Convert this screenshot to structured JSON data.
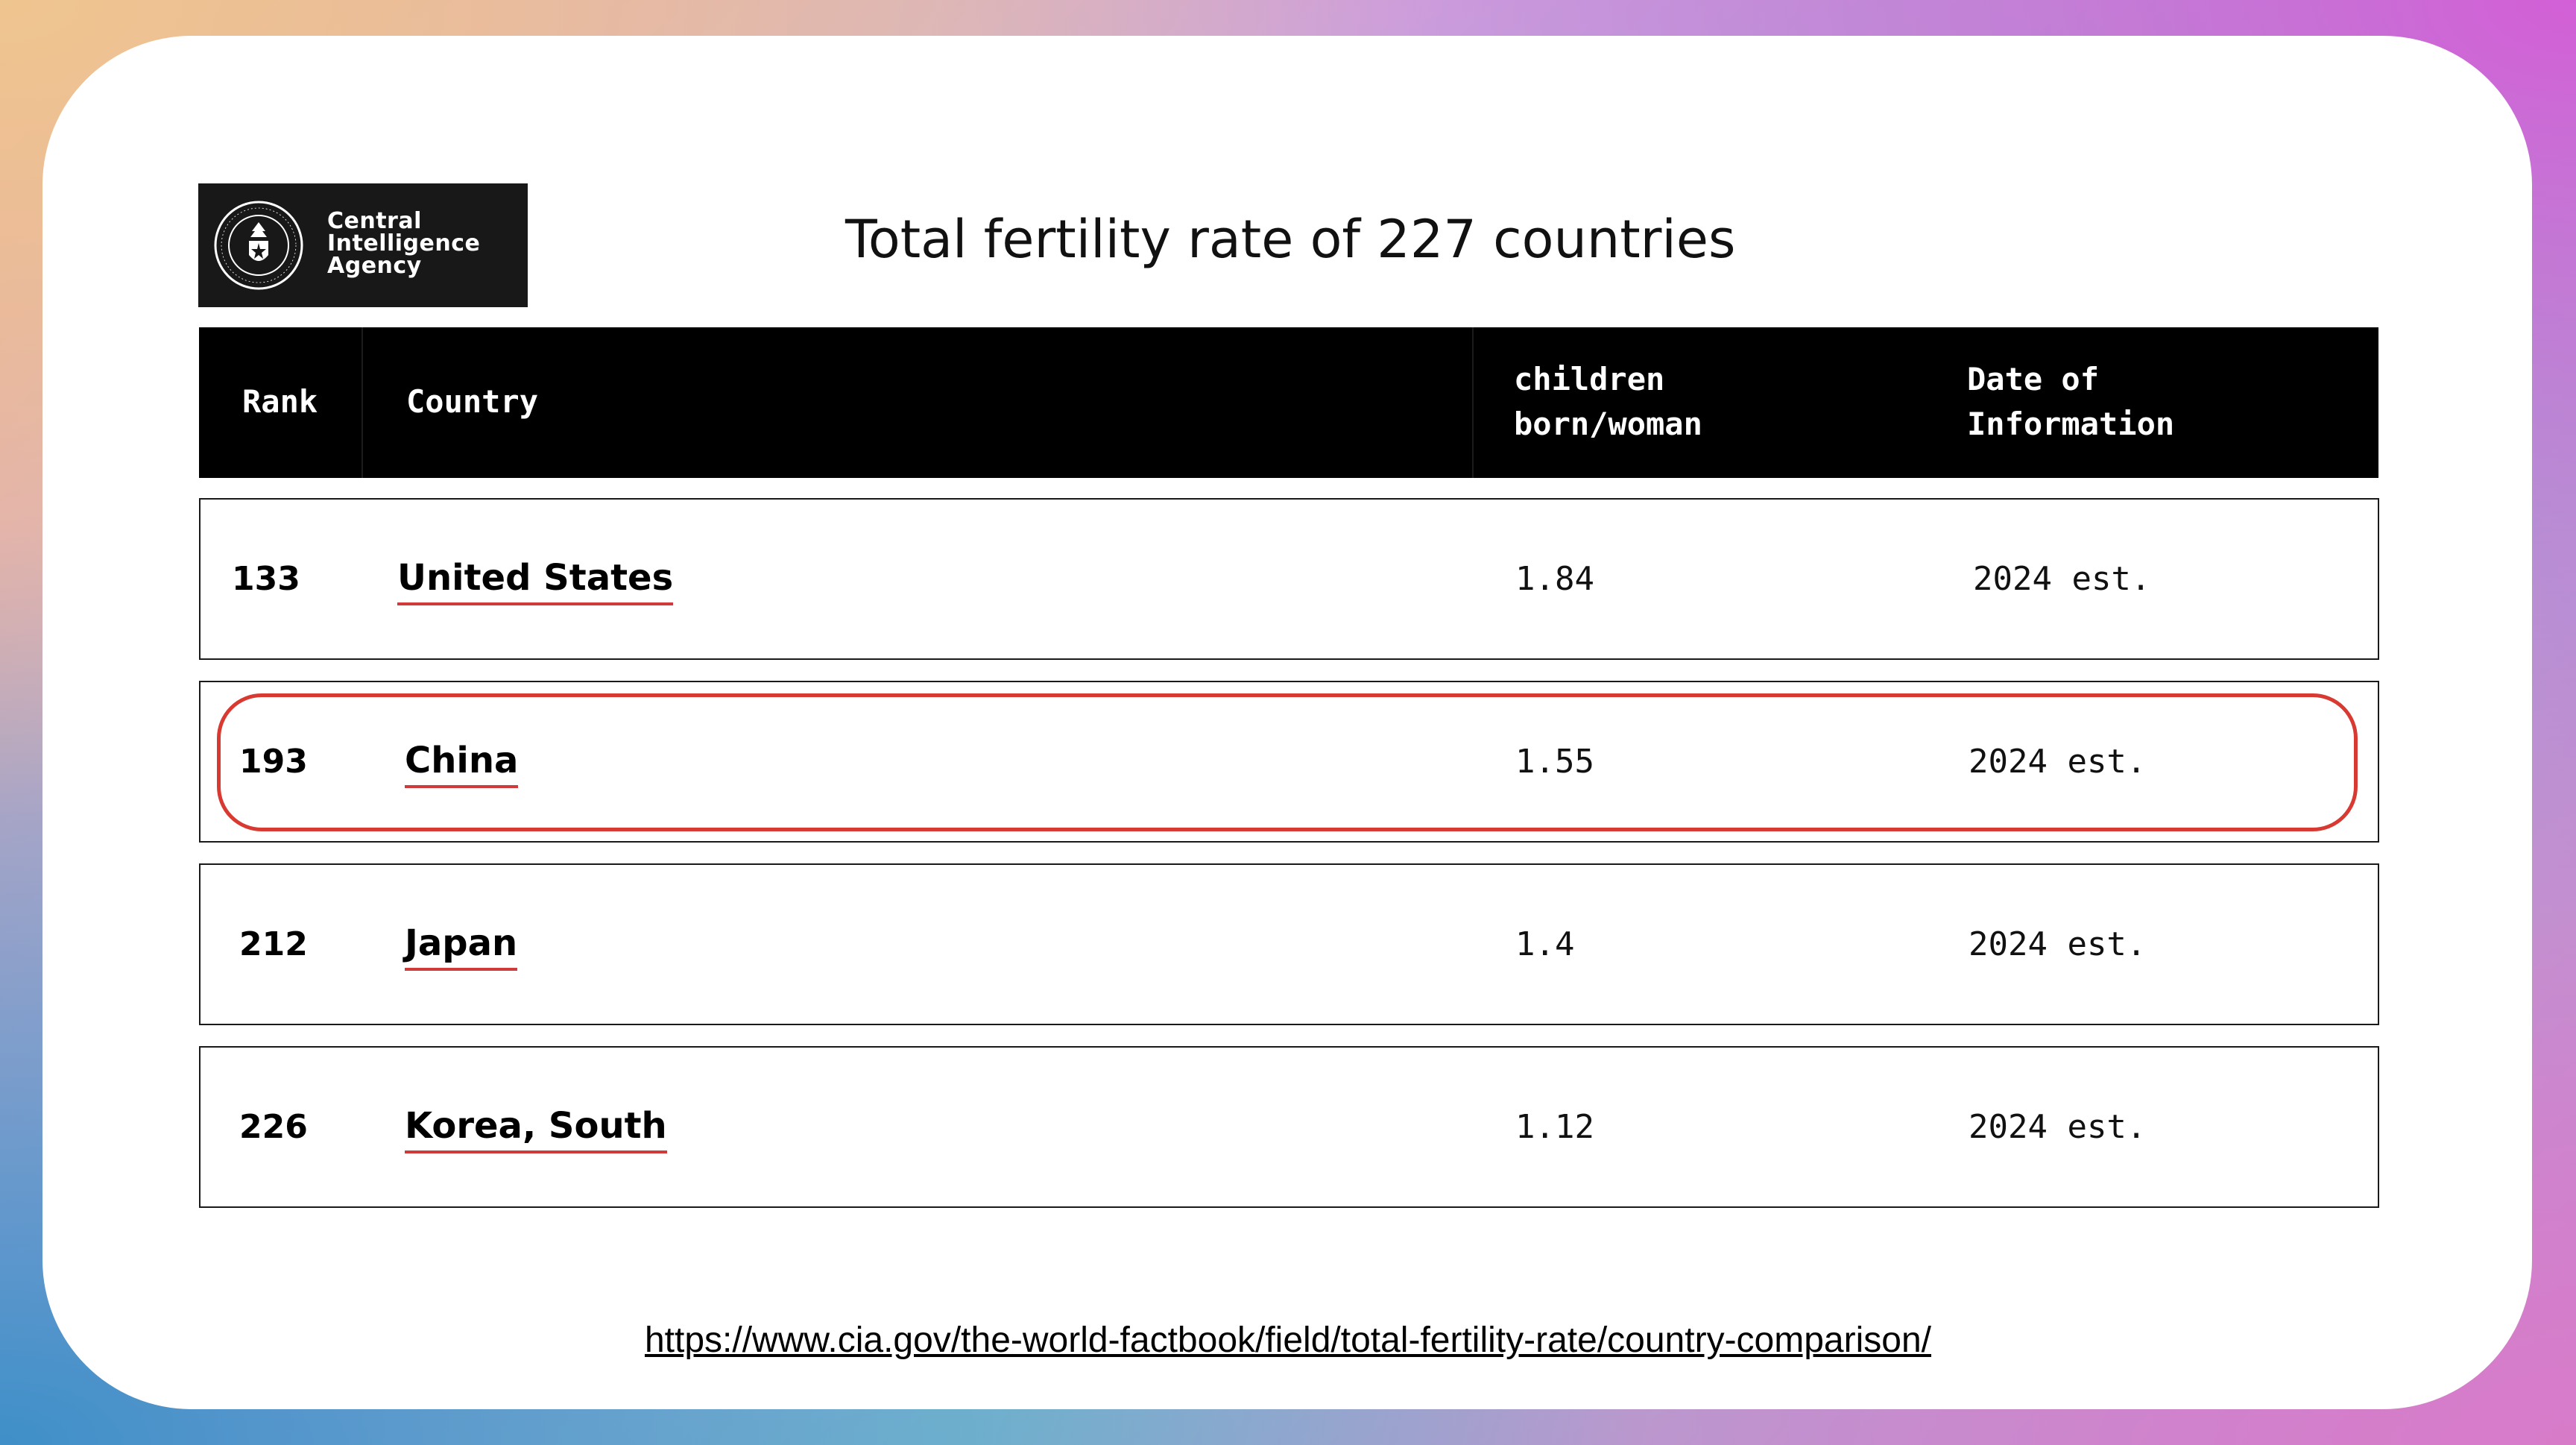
{
  "logo": {
    "text_lines": [
      "Central",
      "Intelligence",
      "Agency"
    ],
    "seal_text": "CENTRAL INTELLIGENCE AGENCY"
  },
  "title": "Total fertility rate of 227 countries",
  "table": {
    "headers": {
      "rank": "Rank",
      "country": "Country",
      "value_line1": "children",
      "value_line2": "born/woman",
      "date_line1": "Date of",
      "date_line2": "Information"
    },
    "rows": [
      {
        "rank": "133",
        "country": "United States",
        "value": "1.84",
        "date": "2024 est.",
        "highlighted": false
      },
      {
        "rank": "193",
        "country": "China",
        "value": "1.55",
        "date": "2024 est.",
        "highlighted": true
      },
      {
        "rank": "212",
        "country": "Japan",
        "value": "1.4",
        "date": "2024 est.",
        "highlighted": false
      },
      {
        "rank": "226",
        "country": "Korea, South",
        "value": "1.12",
        "date": "2024 est.",
        "highlighted": false
      }
    ]
  },
  "source_url": "https://www.cia.gov/the-world-factbook/field/total-fertility-rate/country-comparison/",
  "colors": {
    "accent_red": "#d83a32",
    "header_bg": "#000000",
    "card_bg": "#ffffff"
  }
}
